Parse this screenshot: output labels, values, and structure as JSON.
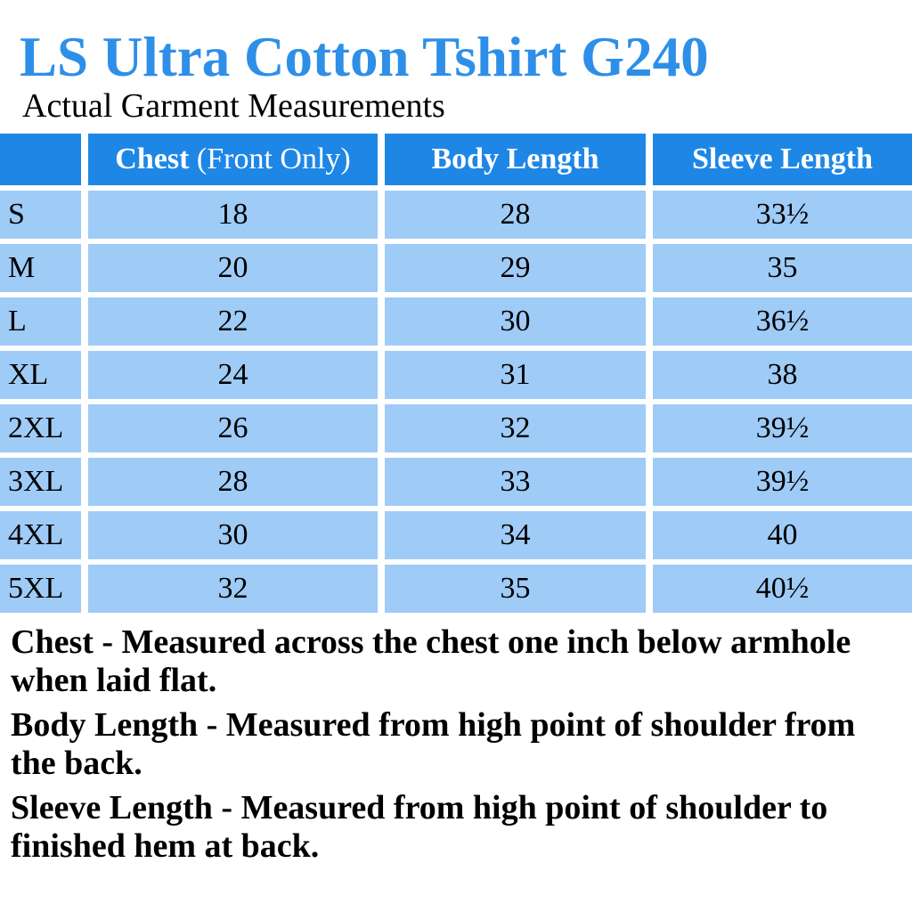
{
  "title": "LS Ultra Cotton Tshirt G240",
  "subtitle": "Actual Garment Measurements",
  "colors": {
    "title_blue": "#2e8fe8",
    "header_blue": "#1e87e6",
    "row_blue": "#9fcbf7",
    "text_black": "#000000",
    "header_text_white": "#ffffff",
    "background": "#ffffff"
  },
  "table": {
    "corner_label": "",
    "columns": [
      {
        "label_bold": "Chest",
        "label_rest": " (Front Only)"
      },
      {
        "label_bold": "Body Length",
        "label_rest": ""
      },
      {
        "label_bold": "Sleeve Length",
        "label_rest": ""
      }
    ],
    "rows": [
      {
        "size": "S",
        "chest": "18",
        "body_length": "28",
        "sleeve_length": "33½"
      },
      {
        "size": "M",
        "chest": "20",
        "body_length": "29",
        "sleeve_length": "35"
      },
      {
        "size": "L",
        "chest": "22",
        "body_length": "30",
        "sleeve_length": "36½"
      },
      {
        "size": "XL",
        "chest": "24",
        "body_length": "31",
        "sleeve_length": "38"
      },
      {
        "size": "2XL",
        "chest": "26",
        "body_length": "32",
        "sleeve_length": "39½"
      },
      {
        "size": "3XL",
        "chest": "28",
        "body_length": "33",
        "sleeve_length": "39½"
      },
      {
        "size": "4XL",
        "chest": "30",
        "body_length": "34",
        "sleeve_length": "40"
      },
      {
        "size": "5XL",
        "chest": "32",
        "body_length": "35",
        "sleeve_length": "40½"
      }
    ]
  },
  "notes": [
    {
      "text": "Chest - Measured across the chest one inch below armhole when laid flat."
    },
    {
      "text": "Body Length - Measured from high point of shoulder from the back."
    },
    {
      "text": "Sleeve Length - Measured from high point of shoulder to finished hem at back."
    }
  ]
}
